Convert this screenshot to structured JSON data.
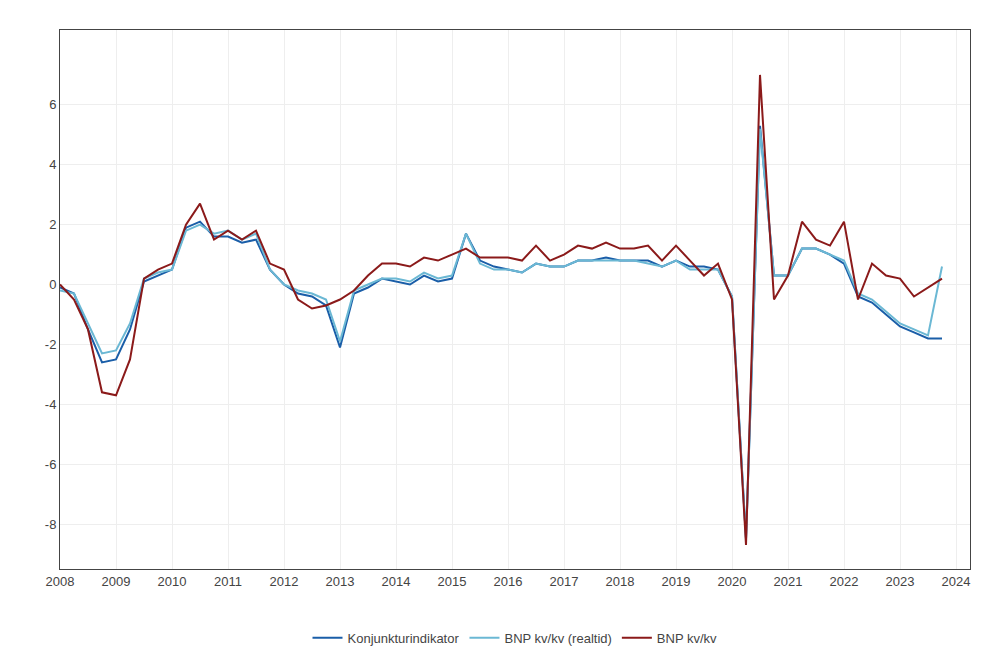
{
  "chart_data": {
    "type": "line",
    "x": [
      2008.0,
      2008.25,
      2008.5,
      2008.75,
      2009.0,
      2009.25,
      2009.5,
      2009.75,
      2010.0,
      2010.25,
      2010.5,
      2010.75,
      2011.0,
      2011.25,
      2011.5,
      2011.75,
      2012.0,
      2012.25,
      2012.5,
      2012.75,
      2013.0,
      2013.25,
      2013.5,
      2013.75,
      2014.0,
      2014.25,
      2014.5,
      2014.75,
      2015.0,
      2015.25,
      2015.5,
      2015.75,
      2016.0,
      2016.25,
      2016.5,
      2016.75,
      2017.0,
      2017.25,
      2017.5,
      2017.75,
      2018.0,
      2018.25,
      2018.5,
      2018.75,
      2019.0,
      2019.25,
      2019.5,
      2019.75,
      2020.0,
      2020.25,
      2020.5,
      2020.75,
      2021.0,
      2021.25,
      2021.5,
      2021.75,
      2022.0,
      2022.25,
      2022.5,
      2022.75,
      2023.0,
      2023.25,
      2023.5,
      2023.75
    ],
    "series": [
      {
        "name": "Konjunkturindikator",
        "color": "#1A5EA8",
        "values": [
          -0.1,
          -0.3,
          -1.5,
          -2.6,
          -2.5,
          -1.5,
          0.1,
          0.3,
          0.5,
          1.9,
          2.1,
          1.6,
          1.6,
          1.4,
          1.5,
          0.5,
          0.0,
          -0.3,
          -0.4,
          -0.7,
          -2.1,
          -0.3,
          -0.1,
          0.2,
          0.1,
          0.0,
          0.3,
          0.1,
          0.2,
          1.7,
          0.8,
          0.6,
          0.5,
          0.4,
          0.7,
          0.6,
          0.6,
          0.8,
          0.8,
          0.9,
          0.8,
          0.8,
          0.8,
          0.6,
          0.8,
          0.6,
          0.6,
          0.5,
          -0.4,
          -8.5,
          5.3,
          0.3,
          0.3,
          1.2,
          1.2,
          1.0,
          0.7,
          -0.4,
          -0.6,
          -1.0,
          -1.4,
          -1.6,
          -1.8,
          -1.8
        ]
      },
      {
        "name": "BNP kv/kv (realtid)",
        "color": "#6BB8D4",
        "values": [
          -0.2,
          -0.3,
          -1.3,
          -2.3,
          -2.2,
          -1.3,
          0.2,
          0.4,
          0.5,
          1.8,
          2.0,
          1.7,
          1.8,
          1.5,
          1.7,
          0.5,
          0.0,
          -0.2,
          -0.3,
          -0.5,
          -1.9,
          -0.2,
          0.0,
          0.2,
          0.2,
          0.1,
          0.4,
          0.2,
          0.3,
          1.7,
          0.7,
          0.5,
          0.5,
          0.4,
          0.7,
          0.6,
          0.6,
          0.8,
          0.8,
          0.8,
          0.8,
          0.8,
          0.7,
          0.6,
          0.8,
          0.5,
          0.5,
          0.5,
          -0.4,
          -8.5,
          5.2,
          0.3,
          0.3,
          1.2,
          1.2,
          1.0,
          0.8,
          -0.3,
          -0.5,
          -0.9,
          -1.3,
          -1.5,
          -1.7,
          0.6
        ]
      },
      {
        "name": "BNP kv/kv",
        "color": "#8B1A1A",
        "values": [
          0.0,
          -0.5,
          -1.5,
          -3.6,
          -3.7,
          -2.5,
          0.2,
          0.5,
          0.7,
          2.0,
          2.7,
          1.5,
          1.8,
          1.5,
          1.8,
          0.7,
          0.5,
          -0.5,
          -0.8,
          -0.7,
          -0.5,
          -0.2,
          0.3,
          0.7,
          0.7,
          0.6,
          0.9,
          0.8,
          1.0,
          1.2,
          0.9,
          0.9,
          0.9,
          0.8,
          1.3,
          0.8,
          1.0,
          1.3,
          1.2,
          1.4,
          1.2,
          1.2,
          1.3,
          0.8,
          1.3,
          0.8,
          0.3,
          0.7,
          -0.5,
          -8.7,
          7.0,
          -0.5,
          0.3,
          2.1,
          1.5,
          1.3,
          2.1,
          -0.5,
          0.7,
          0.3,
          0.2,
          -0.4,
          -0.1,
          0.2
        ]
      }
    ],
    "xlim": [
      2008.0,
      2024.25
    ],
    "ylim": [
      -9.5,
      8.5
    ],
    "xticks": [
      2008,
      2009,
      2010,
      2011,
      2012,
      2013,
      2014,
      2015,
      2016,
      2017,
      2018,
      2019,
      2020,
      2021,
      2022,
      2023,
      2024
    ],
    "yticks": [
      -8,
      -6,
      -4,
      -2,
      0,
      2,
      4,
      6
    ],
    "grid": true,
    "legend": "bottom"
  }
}
